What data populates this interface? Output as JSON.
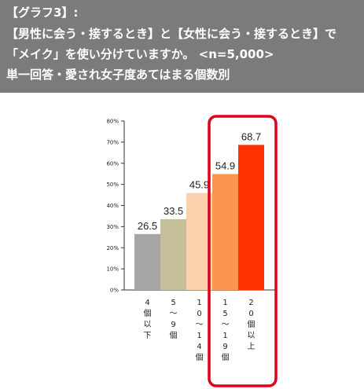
{
  "header": {
    "line1": "【グラフ3】:",
    "line2": "【男性に会う・接するとき】と【女性に会う・接するとき】で",
    "line3": "「メイク」を使い分けていますか。 <n=5,000>",
    "line4": "単一回答・愛され女子度あてはまる個数別"
  },
  "colors": {
    "header_bg": "#7b7b7b",
    "highlight_border": "#e0001a"
  },
  "chart_data": {
    "type": "bar",
    "categories": [
      "4個以下",
      "5〜9個",
      "10〜14個",
      "15〜19個",
      "20個以上"
    ],
    "category_glyphs": [
      [
        "4",
        "個",
        "以",
        "下"
      ],
      [
        "5",
        "〜",
        "9",
        "個"
      ],
      [
        "1",
        "0",
        "〜",
        "1",
        "4",
        "個"
      ],
      [
        "1",
        "5",
        "〜",
        "1",
        "9",
        "個"
      ],
      [
        "2",
        "0",
        "個",
        "以",
        "上"
      ]
    ],
    "values": [
      26.5,
      33.5,
      45.9,
      54.9,
      68.7
    ],
    "value_labels": [
      "26.5",
      "33.5",
      "45.9",
      "54.9",
      "68.7"
    ],
    "bar_colors": [
      "#a6a6a6",
      "#c5bf99",
      "#fbd0ad",
      "#f9954d",
      "#ff3300"
    ],
    "ylim": [
      0,
      80
    ],
    "yticks": [
      0,
      10,
      20,
      30,
      40,
      50,
      60,
      70,
      80
    ],
    "ytick_labels": [
      "0%",
      "10%",
      "20%",
      "30%",
      "40%",
      "50%",
      "60%",
      "70%",
      "80%"
    ],
    "grid": false,
    "highlighted_categories": [
      "15〜19個",
      "20個以上"
    ]
  }
}
